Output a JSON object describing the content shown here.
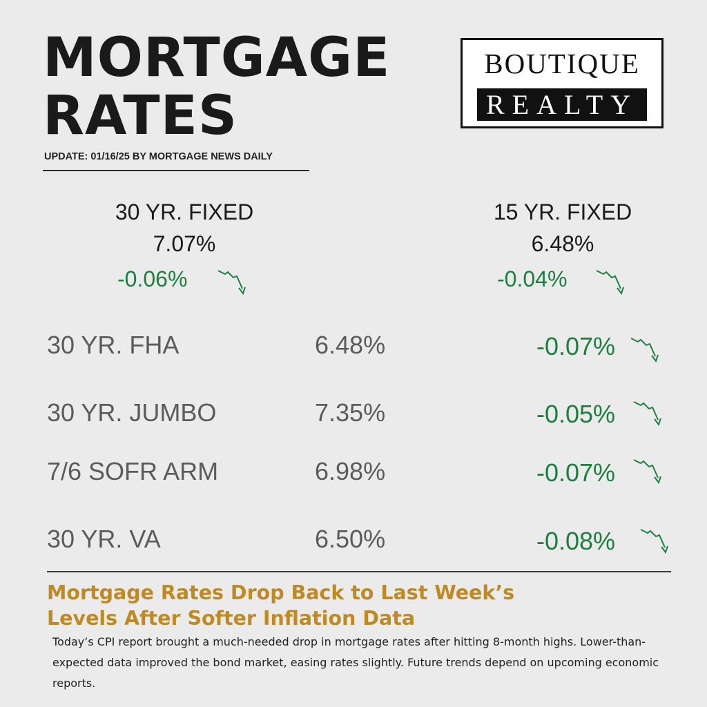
{
  "header": {
    "title_line1": "MORTGAGE",
    "title_line2": "RATES",
    "update": "UPDATE: 01/16/25 BY MORTGAGE NEWS DAILY"
  },
  "logo": {
    "top": "BOUTIQUE",
    "bottom": "REALTY"
  },
  "featured": [
    {
      "name": "30 YR. FIXED",
      "rate": "7.07%",
      "change": "-0.06%",
      "trend_icon": "down-trend-arrow-icon"
    },
    {
      "name": "15 YR. FIXED",
      "rate": "6.48%",
      "change": "-0.04%",
      "trend_icon": "down-trend-arrow-icon"
    }
  ],
  "rates": [
    {
      "name": "30 YR. FHA",
      "rate": "6.48%",
      "change": "-0.07%",
      "trend_icon": "down-trend-arrow-icon"
    },
    {
      "name": "30 YR. JUMBO",
      "rate": "7.35%",
      "change": "-0.05%",
      "trend_icon": "down-trend-arrow-icon"
    },
    {
      "name": "7/6 SOFR ARM",
      "rate": "6.98%",
      "change": "-0.07%",
      "trend_icon": "down-trend-arrow-icon"
    },
    {
      "name": "30 YR. VA",
      "rate": "6.50%",
      "change": "-0.08%",
      "trend_icon": "down-trend-arrow-icon"
    }
  ],
  "article": {
    "headline_line1": "Mortgage Rates Drop Back to Last Week’s",
    "headline_line2": "Levels After Softer Inflation Data",
    "body": "Today’s CPI report brought a much-needed drop in mortgage rates after hitting 8-month highs. Lower-than-expected data improved the bond market, easing rates slightly. Future trends depend on upcoming economic reports."
  },
  "colors": {
    "background": "#ebebeb",
    "decrease_green": "#1b7f3f",
    "headline_gold": "#c08a22",
    "text_dark": "#1a1a1a",
    "text_gray": "#5b5b5b"
  }
}
